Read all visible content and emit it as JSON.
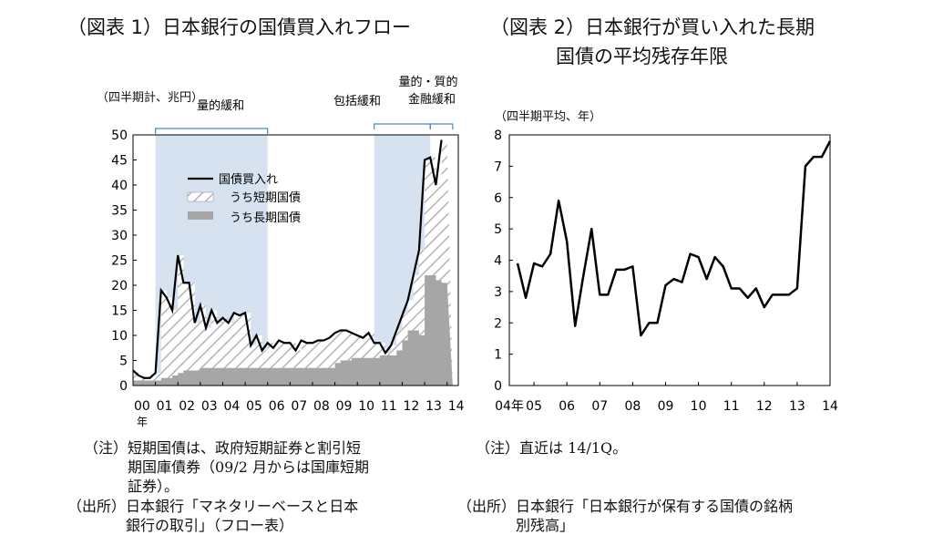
{
  "fig1": {
    "title": "（図表 1）日本銀行の国債買入れフロー",
    "unit": "（四半期計、兆円）",
    "periods": [
      {
        "label": "量的緩和",
        "from": 2001.0,
        "to": 2006.0
      },
      {
        "label": "包括緩和",
        "from": 2010.75,
        "to": 2013.25
      },
      {
        "label_line1": "量的・質的",
        "label_line2": "金融緩和",
        "from": 2013.25,
        "to": 2014.25
      }
    ],
    "note_lines": [
      "（注）短期国債は、政府短期証券と割引短",
      "　　　期国庫債券（09/2 月からは国庫短期",
      "　　　証券）。"
    ],
    "source_lines": [
      "（出所）日本銀行「マネタリーベースと日本",
      "　　　　銀行の取引」（フロー表）"
    ]
  },
  "fig2": {
    "title_line1": "（図表 2）日本銀行が買い入れた長期",
    "title_line2": "国債の平均残存年限",
    "unit": "（四半期平均、年）",
    "note_line": "（注）直近は 14/1Q。",
    "source_lines": [
      "（出所）日本銀行「日本銀行が保有する国債の銘柄",
      "　　　　別残高」"
    ]
  },
  "chart_data": [
    {
      "type": "area",
      "ylim": [
        0,
        50
      ],
      "yticks": [
        0,
        5,
        10,
        15,
        20,
        25,
        30,
        35,
        40,
        45,
        50
      ],
      "xlim": [
        2000,
        2014.5
      ],
      "xticks": [
        {
          "v": 2000,
          "l": "00"
        },
        {
          "v": 2001,
          "l": "01"
        },
        {
          "v": 2002,
          "l": "02"
        },
        {
          "v": 2003,
          "l": "03"
        },
        {
          "v": 2004,
          "l": "04"
        },
        {
          "v": 2005,
          "l": "05"
        },
        {
          "v": 2006,
          "l": "06"
        },
        {
          "v": 2007,
          "l": "07"
        },
        {
          "v": 2008,
          "l": "08"
        },
        {
          "v": 2009,
          "l": "09"
        },
        {
          "v": 2010,
          "l": "10"
        },
        {
          "v": 2011,
          "l": "11"
        },
        {
          "v": 2012,
          "l": "12"
        },
        {
          "v": 2013,
          "l": "13"
        },
        {
          "v": 2014,
          "l": "14"
        }
      ],
      "x_unit": "年",
      "legend": {
        "placement": "upper-left",
        "items": [
          "国債買入れ",
          "うち短期国債",
          "うち長期国債"
        ]
      },
      "series": [
        {
          "name": "国債買入れ",
          "kind": "line",
          "x": [
            2000.0,
            2000.25,
            2000.5,
            2000.75,
            2001.0,
            2001.25,
            2001.5,
            2001.75,
            2002.0,
            2002.25,
            2002.5,
            2002.75,
            2003.0,
            2003.25,
            2003.5,
            2003.75,
            2004.0,
            2004.25,
            2004.5,
            2004.75,
            2005.0,
            2005.25,
            2005.5,
            2005.75,
            2006.0,
            2006.25,
            2006.5,
            2006.75,
            2007.0,
            2007.25,
            2007.5,
            2007.75,
            2008.0,
            2008.25,
            2008.5,
            2008.75,
            2009.0,
            2009.25,
            2009.5,
            2009.75,
            2010.0,
            2010.25,
            2010.5,
            2010.75,
            2011.0,
            2011.25,
            2011.5,
            2011.75,
            2012.0,
            2012.25,
            2012.5,
            2012.75,
            2013.0,
            2013.25,
            2013.5,
            2013.75,
            2014.0
          ],
          "values": [
            3,
            2,
            1.5,
            1.5,
            2.5,
            19,
            17.5,
            15,
            26,
            20.5,
            20.5,
            12.5,
            16,
            11.5,
            15,
            12.5,
            13.5,
            12.5,
            14.5,
            14,
            14.5,
            8,
            10,
            7,
            8.5,
            7.5,
            9,
            8.5,
            8.5,
            7,
            9,
            8.5,
            8.5,
            9,
            9,
            9.5,
            10.5,
            11,
            11,
            10.5,
            10,
            9.5,
            10.5,
            8.5,
            8.5,
            6.5,
            8,
            11,
            14,
            17,
            22,
            27,
            45,
            45.5,
            40,
            49,
            null
          ]
        },
        {
          "name": "うち長期国債",
          "kind": "area",
          "x": [
            2000.0,
            2000.25,
            2000.5,
            2000.75,
            2001.0,
            2001.25,
            2001.5,
            2001.75,
            2002.0,
            2002.25,
            2002.5,
            2002.75,
            2003.0,
            2003.25,
            2003.5,
            2003.75,
            2004.0,
            2004.25,
            2004.5,
            2004.75,
            2005.0,
            2005.25,
            2005.5,
            2005.75,
            2006.0,
            2006.25,
            2006.5,
            2006.75,
            2007.0,
            2007.25,
            2007.5,
            2007.75,
            2008.0,
            2008.25,
            2008.5,
            2008.75,
            2009.0,
            2009.25,
            2009.5,
            2009.75,
            2010.0,
            2010.25,
            2010.5,
            2010.75,
            2011.0,
            2011.25,
            2011.5,
            2011.75,
            2012.0,
            2012.25,
            2012.5,
            2012.75,
            2013.0,
            2013.25,
            2013.5,
            2013.75,
            2014.0
          ],
          "values": [
            1,
            1,
            1,
            1,
            1,
            1.5,
            1.5,
            2,
            2.5,
            3,
            3,
            3,
            3.5,
            3.5,
            3.5,
            3.5,
            3.5,
            3.5,
            3.5,
            3.5,
            3.5,
            3.5,
            3.5,
            3.5,
            3.5,
            3.5,
            3.5,
            3.5,
            3.5,
            3.5,
            3.5,
            3.5,
            3.5,
            3.5,
            3.5,
            3.5,
            4.5,
            5,
            5,
            5.5,
            5.5,
            5.5,
            5.5,
            5.5,
            6,
            6,
            6,
            7,
            9,
            11,
            11,
            10,
            22,
            22,
            21,
            20.5,
            null
          ]
        }
      ]
    },
    {
      "type": "line",
      "ylim": [
        0,
        8
      ],
      "yticks": [
        0,
        1,
        2,
        3,
        4,
        5,
        6,
        7,
        8
      ],
      "xlim": [
        2004.25,
        2014.0
      ],
      "xticks": [
        {
          "v": 2004.25,
          "l": "04年"
        },
        {
          "v": 2005,
          "l": "05"
        },
        {
          "v": 2006,
          "l": "06"
        },
        {
          "v": 2007,
          "l": "07"
        },
        {
          "v": 2008,
          "l": "08"
        },
        {
          "v": 2009,
          "l": "09"
        },
        {
          "v": 2010,
          "l": "10"
        },
        {
          "v": 2011,
          "l": "11"
        },
        {
          "v": 2012,
          "l": "12"
        },
        {
          "v": 2013,
          "l": "13"
        },
        {
          "v": 2014,
          "l": "14"
        }
      ],
      "series": [
        {
          "name": "",
          "x": [
            2004.5,
            2004.75,
            2005.0,
            2005.25,
            2005.5,
            2005.75,
            2006.0,
            2006.25,
            2006.5,
            2006.75,
            2007.0,
            2007.25,
            2007.5,
            2007.75,
            2008.0,
            2008.25,
            2008.5,
            2008.75,
            2009.0,
            2009.25,
            2009.5,
            2009.75,
            2010.0,
            2010.25,
            2010.5,
            2010.75,
            2011.0,
            2011.25,
            2011.5,
            2011.75,
            2012.0,
            2012.25,
            2012.5,
            2012.75,
            2013.0,
            2013.25,
            2013.5,
            2013.75,
            2014.0
          ],
          "values": [
            3.9,
            2.8,
            3.9,
            3.8,
            4.2,
            5.9,
            4.6,
            1.9,
            3.5,
            5.0,
            2.9,
            2.9,
            3.7,
            3.7,
            3.8,
            1.6,
            2.0,
            2.0,
            3.2,
            3.4,
            3.3,
            4.2,
            4.1,
            3.4,
            4.1,
            3.8,
            3.1,
            3.1,
            2.8,
            3.1,
            2.5,
            2.9,
            2.9,
            2.9,
            3.1,
            7.0,
            7.3,
            7.3,
            7.8
          ]
        }
      ]
    }
  ]
}
